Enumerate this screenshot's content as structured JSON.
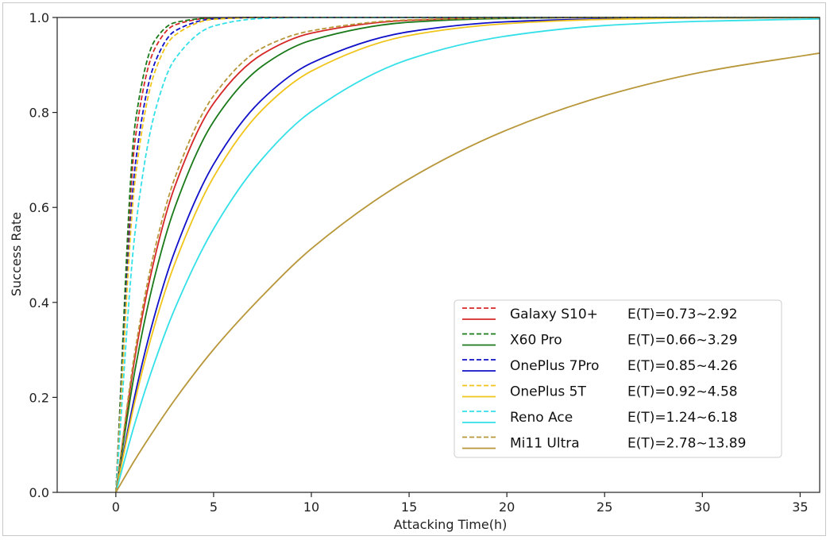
{
  "chart_data": {
    "type": "line",
    "title": "",
    "xlabel": "Attacking Time(h)",
    "ylabel": "Success Rate",
    "xlim": [
      -3,
      36
    ],
    "ylim": [
      0,
      1.0
    ],
    "xticks": [
      0,
      5,
      10,
      15,
      20,
      25,
      30,
      35
    ],
    "yticks": [
      0.0,
      0.2,
      0.4,
      0.6,
      0.8,
      1.0
    ],
    "xtick_labels": [
      "0",
      "5",
      "10",
      "15",
      "20",
      "25",
      "30",
      "35"
    ],
    "ytick_labels": [
      "0.0",
      "0.2",
      "0.4",
      "0.6",
      "0.8",
      "1.0"
    ],
    "grid": false,
    "legend_position": "lower-right",
    "x": [
      0,
      1,
      2,
      3,
      5,
      7.5,
      10,
      15,
      20,
      25,
      30,
      36
    ],
    "series": [
      {
        "device": "Galaxy S10+",
        "etime": "E(T)=0.73~2.92",
        "color": "#d62728",
        "style": "dashed",
        "values": [
          0.0,
          0.746,
          0.935,
          0.984,
          0.999,
          1.0,
          1.0,
          1.0,
          1.0,
          1.0,
          1.0,
          1.0
        ]
      },
      {
        "device": "Galaxy S10+",
        "etime": "",
        "color": "#d62728",
        "style": "solid",
        "values": [
          0.0,
          0.29,
          0.496,
          0.642,
          0.819,
          0.923,
          0.967,
          0.994,
          0.999,
          1.0,
          1.0,
          1.0
        ]
      },
      {
        "device": "X60 Pro",
        "etime": "E(T)=0.66~3.29",
        "color": "#1a7a1a",
        "style": "dashed",
        "values": [
          0.0,
          0.78,
          0.952,
          0.989,
          0.999,
          1.0,
          1.0,
          1.0,
          1.0,
          1.0,
          1.0,
          1.0
        ]
      },
      {
        "device": "X60 Pro",
        "etime": "",
        "color": "#1a7a1a",
        "style": "solid",
        "values": [
          0.0,
          0.262,
          0.456,
          0.598,
          0.781,
          0.898,
          0.952,
          0.99,
          0.998,
          1.0,
          1.0,
          1.0
        ]
      },
      {
        "device": "OnePlus 7Pro",
        "etime": "E(T)=0.85~4.26",
        "color": "#1010c8",
        "style": "dashed",
        "values": [
          0.0,
          0.692,
          0.905,
          0.971,
          0.997,
          1.0,
          1.0,
          1.0,
          1.0,
          1.0,
          1.0,
          1.0
        ]
      },
      {
        "device": "OnePlus 7Pro",
        "etime": "",
        "color": "#1010c8",
        "style": "solid",
        "values": [
          0.0,
          0.209,
          0.375,
          0.506,
          0.691,
          0.828,
          0.904,
          0.97,
          0.991,
          0.997,
          0.999,
          1.0
        ]
      },
      {
        "device": "OnePlus 5T",
        "etime": "E(T)=0.92~4.58",
        "color": "#f0c419",
        "style": "dashed",
        "values": [
          0.0,
          0.663,
          0.886,
          0.962,
          0.996,
          1.0,
          1.0,
          1.0,
          1.0,
          1.0,
          1.0,
          1.0
        ]
      },
      {
        "device": "OnePlus 5T",
        "etime": "",
        "color": "#f0c419",
        "style": "solid",
        "values": [
          0.0,
          0.196,
          0.354,
          0.48,
          0.664,
          0.806,
          0.887,
          0.962,
          0.987,
          0.996,
          0.999,
          1.0
        ]
      },
      {
        "device": "Reno Ace",
        "etime": "E(T)=1.24~6.18",
        "color": "#33e0e8",
        "style": "dashed",
        "values": [
          0.0,
          0.554,
          0.801,
          0.911,
          0.982,
          0.998,
          1.0,
          1.0,
          1.0,
          1.0,
          1.0,
          1.0
        ]
      },
      {
        "device": "Reno Ace",
        "etime": "",
        "color": "#33e0e8",
        "style": "solid",
        "values": [
          0.0,
          0.149,
          0.276,
          0.385,
          0.555,
          0.703,
          0.802,
          0.912,
          0.961,
          0.983,
          0.992,
          0.997
        ]
      },
      {
        "device": "Mi11 Ultra",
        "etime": "E(T)=2.78~13.89",
        "color": "#b8973a",
        "style": "dashed",
        "values": [
          0.0,
          0.302,
          0.513,
          0.66,
          0.835,
          0.936,
          0.972,
          0.995,
          0.999,
          1.0,
          1.0,
          1.0
        ]
      },
      {
        "device": "Mi11 Ultra",
        "etime": "",
        "color": "#b8973a",
        "style": "solid",
        "values": [
          0.0,
          0.07,
          0.134,
          0.194,
          0.301,
          0.414,
          0.513,
          0.66,
          0.763,
          0.835,
          0.885,
          0.925
        ]
      }
    ],
    "legend": [
      {
        "device": "Galaxy S10+",
        "etime": "E(T)=0.73~2.92",
        "color": "#d62728"
      },
      {
        "device": "X60 Pro",
        "etime": "E(T)=0.66~3.29",
        "color": "#1a7a1a"
      },
      {
        "device": "OnePlus 7Pro",
        "etime": "E(T)=0.85~4.26",
        "color": "#1010c8"
      },
      {
        "device": "OnePlus 5T",
        "etime": "E(T)=0.92~4.58",
        "color": "#f0c419"
      },
      {
        "device": "Reno Ace",
        "etime": "E(T)=1.24~6.18",
        "color": "#33e0e8"
      },
      {
        "device": "Mi11 Ultra",
        "etime": "E(T)=2.78~13.89",
        "color": "#b8973a"
      }
    ]
  }
}
